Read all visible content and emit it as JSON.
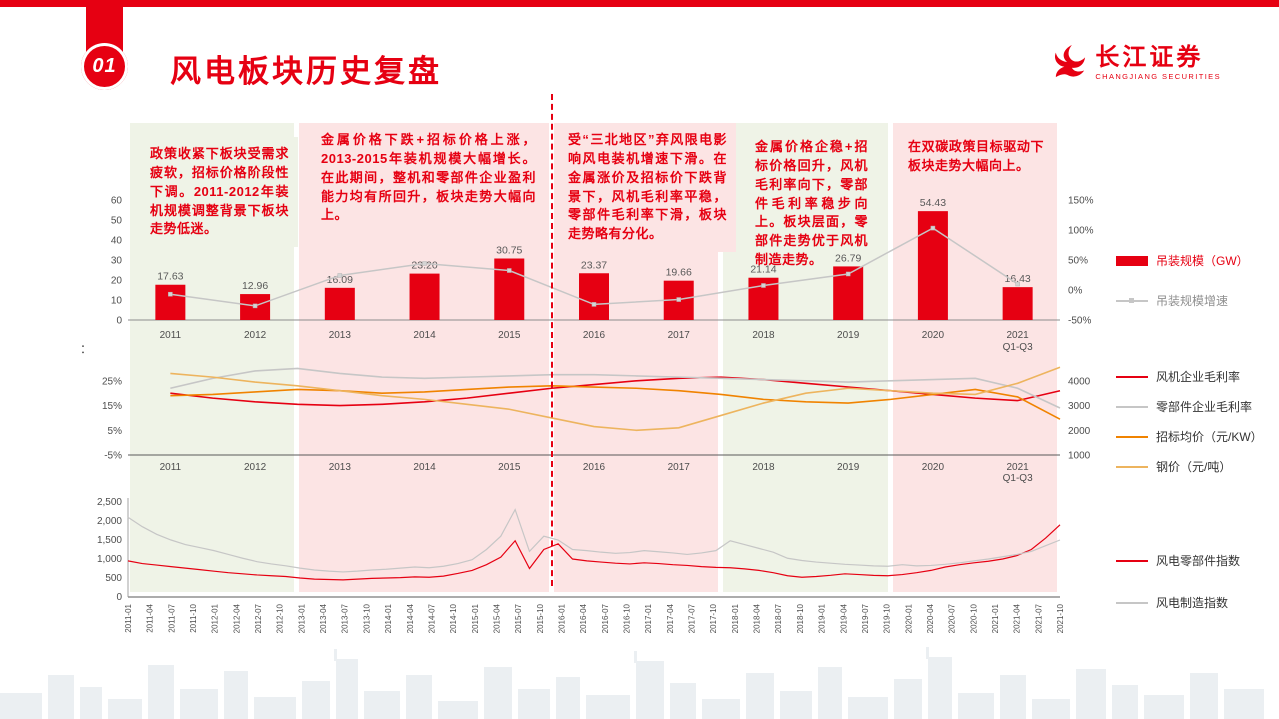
{
  "page": {
    "section_number": "01",
    "title": "风电板块历史复盘",
    "logo": {
      "name": "长江证券",
      "subtitle": "CHANGJIANG SECURITIES"
    }
  },
  "axis_note": "：",
  "colors": {
    "red": "#e60012",
    "gray": "#c6c6c6",
    "orange": "#f08300",
    "tan": "#edb45e",
    "band_green": "#eff3e7",
    "band_pink": "#fce4e4"
  },
  "annotations": [
    {
      "tone": "green",
      "text": "政策收紧下板块受需求疲软，招标价格阶段性下调。2011-2012年装机规模调整背景下板块走势低迷。"
    },
    {
      "tone": "pink",
      "text": "金属价格下跌+招标价格上涨，2013-2015年装机规模大幅增长。在此期间，整机和零部件企业盈利能力均有所回升，板块走势大幅向上。"
    },
    {
      "tone": "pink",
      "text": "受“三北地区”弃风限电影响风电装机增速下滑。在金属涨价及招标价下跌背景下，风机毛利率平稳，零部件毛利率下滑，板块走势略有分化。"
    },
    {
      "tone": "green",
      "text": "金属价格企稳+招标价格回升，风机毛利率向下，零部件毛利率稳步向上。板块层面，零部件走势优于风机制造走势。"
    },
    {
      "tone": "pink",
      "text": "在双碳政策目标驱动下板块走势大幅向上。"
    }
  ],
  "bands": [
    {
      "from": 2011,
      "to": 2012,
      "tone": "green"
    },
    {
      "from": 2013,
      "to": 2015,
      "tone": "pink"
    },
    {
      "from": 2016,
      "to": 2017,
      "tone": "pink"
    },
    {
      "from": 2018,
      "to": 2019,
      "tone": "green"
    },
    {
      "from": 2020,
      "to": 2021,
      "tone": "pink"
    }
  ],
  "legends": {
    "chart1": [
      {
        "label": "吊装规模（GW）",
        "swatch": "bar",
        "color": "red",
        "text_tone": "red"
      },
      {
        "label": "吊装规模增速",
        "swatch": "line-marker",
        "color": "gray",
        "text_tone": "gray"
      }
    ],
    "chart2": [
      {
        "label": "风机企业毛利率",
        "swatch": "line",
        "color": "red",
        "text_tone": "dark"
      },
      {
        "label": "零部件企业毛利率",
        "swatch": "line",
        "color": "gray",
        "text_tone": "dark"
      },
      {
        "label": "招标均价（元/KW）",
        "swatch": "line",
        "color": "orange",
        "text_tone": "dark"
      },
      {
        "label": "钢价（元/吨）",
        "swatch": "line",
        "color": "tan",
        "text_tone": "dark"
      }
    ],
    "chart3": [
      {
        "label": "风电零部件指数",
        "swatch": "line",
        "color": "red",
        "text_tone": "dark"
      },
      {
        "label": "风电制造指数",
        "swatch": "line",
        "color": "gray",
        "text_tone": "dark"
      }
    ]
  },
  "chart_data": [
    {
      "type": "bar",
      "title": "",
      "categories": [
        "2011",
        "2012",
        "2013",
        "2014",
        "2015",
        "2016",
        "2017",
        "2018",
        "2019",
        "2020",
        "2021\nQ1-Q3"
      ],
      "series": [
        {
          "key": "capacity-bars",
          "name": "吊装规模（GW）",
          "type": "bar",
          "axis": "left",
          "color": "red",
          "values": [
            17.63,
            12.96,
            16.09,
            23.2,
            30.75,
            23.37,
            19.66,
            21.14,
            26.79,
            54.43,
            16.43
          ],
          "labels": [
            "17.63",
            "12.96",
            "16.09",
            "23.20",
            "30.75",
            "23.37",
            "19.66",
            "21.14",
            "26.79",
            "54.43",
            "16.43"
          ]
        },
        {
          "key": "capacity-growth-line",
          "name": "吊装规模增速",
          "type": "line",
          "axis": "right",
          "color": "gray",
          "values": [
            -7,
            -26.5,
            24.2,
            44.2,
            32.5,
            -24,
            -15.9,
            7.5,
            26.7,
            103.2,
            10
          ]
        }
      ],
      "left_axis": {
        "ticks": [
          0,
          10,
          20,
          30,
          40,
          50,
          60
        ],
        "min": 0,
        "max": 60
      },
      "right_axis": {
        "ticks": [
          "-50%",
          "0%",
          "50%",
          "100%",
          "150%"
        ],
        "min": -50,
        "max": 150
      }
    },
    {
      "type": "line",
      "title": "",
      "x_labels": [
        "2011",
        "2012",
        "2013",
        "2014",
        "2015",
        "2016",
        "2017",
        "2018",
        "2019",
        "2020",
        "2021\nQ1-Q3"
      ],
      "step": 0.5,
      "series": [
        {
          "key": "turbine-margin-line",
          "name": "风机企业毛利率",
          "axis": "left",
          "color": "red",
          "values": [
            20,
            18,
            16.5,
            15.5,
            15,
            15.5,
            16.5,
            18,
            20,
            22,
            23.5,
            25,
            26,
            26.5,
            25.5,
            24,
            22.5,
            21,
            19.5,
            18,
            17,
            21
          ]
        },
        {
          "key": "component-margin-line",
          "name": "零部件企业毛利率",
          "axis": "left",
          "color": "gray",
          "values": [
            22,
            26,
            29,
            30,
            28,
            26.5,
            26,
            26.5,
            27,
            27.5,
            27.5,
            27,
            26.5,
            26,
            25.5,
            25,
            24.5,
            25,
            25.5,
            26,
            22,
            14
          ]
        },
        {
          "key": "bid-price-line",
          "name": "招标均价（元/KW）",
          "axis": "right",
          "color": "orange",
          "values": [
            3400,
            3450,
            3550,
            3650,
            3600,
            3500,
            3550,
            3650,
            3750,
            3800,
            3750,
            3700,
            3600,
            3450,
            3250,
            3150,
            3100,
            3250,
            3450,
            3650,
            3350,
            2450
          ]
        },
        {
          "key": "steel-price-line",
          "name": "钢价（元/吨）",
          "axis": "right",
          "color": "tan",
          "values": [
            4300,
            4150,
            3950,
            3800,
            3600,
            3400,
            3250,
            3050,
            2850,
            2500,
            2150,
            2000,
            2100,
            2600,
            3100,
            3500,
            3700,
            3600,
            3500,
            3450,
            3900,
            4550
          ]
        }
      ],
      "left_axis": {
        "ticks": [
          "25%",
          "15%",
          "5%",
          "-5%"
        ],
        "min": -5,
        "max": 31
      },
      "right_axis": {
        "ticks": [
          4000,
          3000,
          2000,
          1000
        ],
        "min": 1000,
        "max": 4600
      }
    },
    {
      "type": "line",
      "title": "",
      "x_labels": [
        "2011-01",
        "2011-04",
        "2011-07",
        "2011-10",
        "2012-01",
        "2012-04",
        "2012-07",
        "2012-10",
        "2013-01",
        "2013-04",
        "2013-07",
        "2013-10",
        "2014-01",
        "2014-04",
        "2014-07",
        "2014-10",
        "2015-01",
        "2015-04",
        "2015-07",
        "2015-10",
        "2016-01",
        "2016-04",
        "2016-07",
        "2016-10",
        "2017-01",
        "2017-04",
        "2017-07",
        "2017-10",
        "2018-01",
        "2018-04",
        "2018-07",
        "2018-10",
        "2019-01",
        "2019-04",
        "2019-07",
        "2019-10",
        "2020-01",
        "2020-04",
        "2020-07",
        "2020-10",
        "2021-01",
        "2021-04",
        "2021-07",
        "2021-10"
      ],
      "series": [
        {
          "key": "component-index-line",
          "name": "风电零部件指数",
          "color": "red",
          "values": [
            950,
            880,
            840,
            800,
            760,
            720,
            680,
            640,
            610,
            580,
            560,
            540,
            500,
            470,
            460,
            450,
            470,
            490,
            500,
            510,
            530,
            520,
            550,
            620,
            700,
            850,
            1050,
            1480,
            750,
            1250,
            1400,
            1000,
            950,
            920,
            890,
            870,
            900,
            880,
            850,
            830,
            800,
            780,
            770,
            740,
            700,
            640,
            560,
            520,
            540,
            570,
            610,
            590,
            570,
            560,
            590,
            640,
            700,
            790,
            850,
            900,
            940,
            1000,
            1090,
            1250,
            1550,
            1900
          ]
        },
        {
          "key": "manufacturing-index-line",
          "name": "风电制造指数",
          "color": "gray",
          "values": [
            2100,
            1850,
            1650,
            1500,
            1380,
            1300,
            1220,
            1120,
            1020,
            930,
            870,
            820,
            760,
            710,
            680,
            660,
            680,
            710,
            730,
            760,
            790,
            770,
            810,
            880,
            980,
            1250,
            1600,
            2300,
            1200,
            1600,
            1500,
            1250,
            1220,
            1180,
            1150,
            1170,
            1220,
            1190,
            1160,
            1120,
            1160,
            1220,
            1480,
            1380,
            1280,
            1180,
            1020,
            960,
            920,
            890,
            860,
            840,
            820,
            810,
            850,
            820,
            830,
            860,
            900,
            950,
            1000,
            1060,
            1120,
            1200,
            1350,
            1500
          ]
        }
      ],
      "y_axis": {
        "ticks": [
          "0",
          "500",
          "1,000",
          "1,500",
          "2,000",
          "2,500"
        ],
        "min": 0,
        "max": 2500
      }
    }
  ]
}
